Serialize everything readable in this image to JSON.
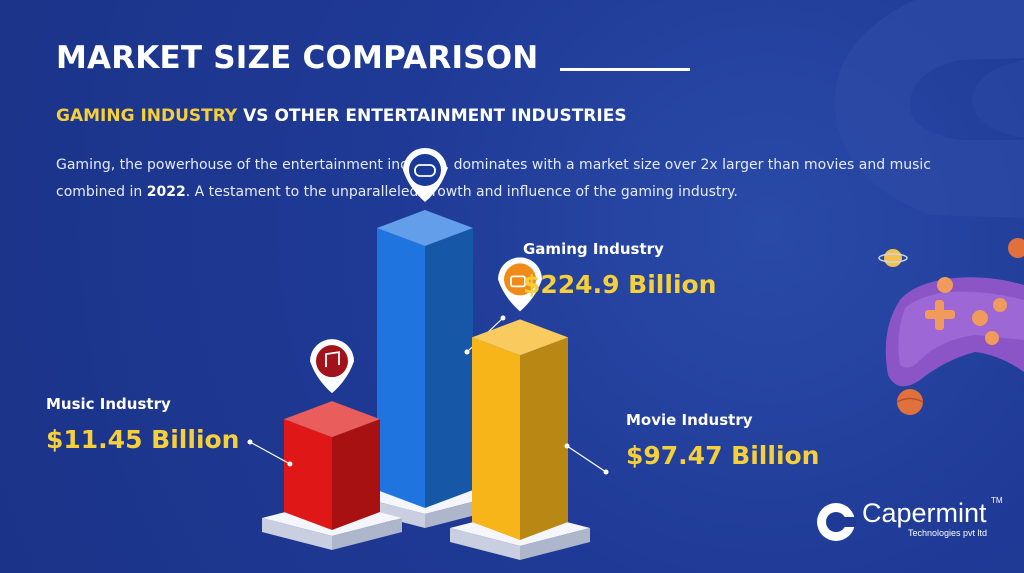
{
  "header": {
    "title": "MARKET SIZE COMPARISON",
    "subtitle_highlight": "GAMING INDUSTRY",
    "subtitle_rest": " VS OTHER ENTERTAINMENT INDUSTRIES",
    "desc_before": "Gaming, the powerhouse of the entertainment industry, dominates with a market size over 2x larger than movies and music combined in ",
    "desc_year": "2022",
    "desc_after": ". A testament to the unparalleled growth and influence of the gaming industry."
  },
  "chart_data": {
    "type": "bar",
    "categories": [
      "Music Industry",
      "Gaming Industry",
      "Movie Industry"
    ],
    "values": [
      11.45,
      224.9,
      97.47
    ],
    "value_labels": [
      "$11.45 Billion",
      "$224.9 Billion",
      "$97.47 Billion"
    ],
    "icons": [
      "music-note-icon",
      "gamepad-icon",
      "movie-camera-icon"
    ],
    "colors": [
      "#e01717",
      "#1f74e0",
      "#f7b51a"
    ],
    "title": "",
    "xlabel": "",
    "ylabel": ""
  },
  "logo": {
    "name": "Capermint",
    "tagline": "Technologies pvt ltd",
    "trademark": "TM"
  },
  "colors": {
    "background": "#1f3a96",
    "accent_yellow": "#f6d03a"
  }
}
